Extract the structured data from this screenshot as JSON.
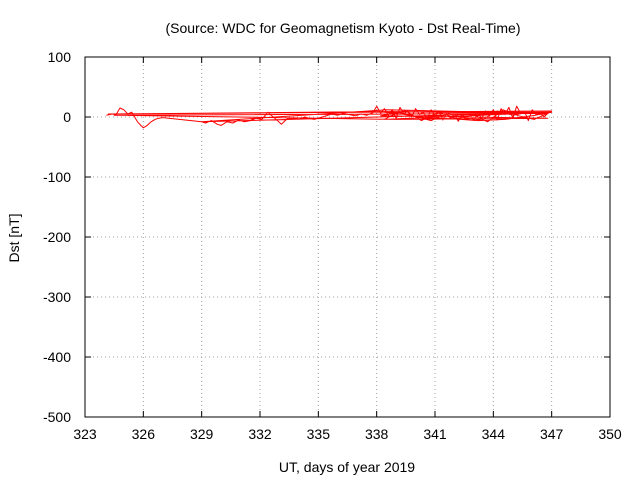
{
  "chart_data": {
    "type": "line",
    "title": "(Source: WDC for Geomagnetism Kyoto - Dst Real-Time)",
    "xlabel": "UT, days of year 2019",
    "ylabel": "Dst [nT]",
    "xlim": [
      323,
      350
    ],
    "ylim": [
      -500,
      100
    ],
    "x_ticks": [
      323,
      326,
      329,
      332,
      335,
      338,
      341,
      344,
      347,
      350
    ],
    "x_tick_labels": [
      "323",
      "326",
      "329",
      "332",
      "335",
      "338",
      "341",
      "344",
      "347",
      "350"
    ],
    "y_ticks": [
      100,
      0,
      -100,
      -200,
      -300,
      -400,
      -500
    ],
    "y_tick_labels": [
      "100",
      "0",
      "-100",
      "-200",
      "-300",
      "-400",
      "-500"
    ],
    "grid": true,
    "series_color": "#ff0000",
    "series": [
      {
        "x": [
          324.1,
          324.4,
          324.6,
          324.8,
          325.0,
          325.2,
          325.4,
          325.5,
          325.7,
          325.9,
          326.0,
          326.2,
          326.4,
          326.6,
          326.8,
          327.0,
          329.0,
          329.2,
          329.5,
          329.8,
          330.0,
          330.3,
          330.6,
          330.9,
          331.2,
          331.5,
          331.8,
          332.1,
          332.4,
          332.6,
          332.9,
          333.1,
          333.4,
          333.7,
          334.0,
          334.3,
          334.5,
          334.8,
          335.1,
          335.4,
          335.7,
          336.0,
          336.3,
          336.6,
          336.9,
          337.2,
          337.5,
          337.8,
          338.0,
          338.2,
          338.4,
          338.6,
          338.8,
          339.0,
          339.2,
          339.4,
          339.6,
          339.8,
          340.0,
          340.2,
          340.4,
          340.6,
          340.8,
          341.0,
          341.2,
          341.4,
          341.6,
          341.8,
          342.0,
          342.2,
          342.4,
          342.6,
          342.8,
          343.0,
          343.2,
          343.4,
          343.6,
          343.8,
          344.0,
          344.2,
          344.4,
          344.6,
          344.8,
          345.0,
          345.2,
          345.4,
          345.6,
          345.8,
          346.0,
          346.2,
          346.4,
          346.6,
          346.8,
          347.0,
          324.2,
          338.0,
          347.0,
          329.0,
          338.5,
          346.5,
          324.5,
          339.0,
          346.8,
          338.2,
          339.5,
          340.3,
          341.2,
          342.1,
          343.0,
          343.7,
          344.5,
          345.3,
          346.1,
          346.9,
          338.4,
          339.1,
          339.9,
          340.8,
          341.7,
          342.6,
          343.4,
          344.2,
          345.0,
          345.8,
          346.6,
          338.1,
          339.3,
          340.6,
          341.9,
          343.2,
          344.6,
          346.0,
          347.0
        ],
        "y": [
          3,
          5,
          4,
          15,
          12,
          5,
          8,
          3,
          -8,
          -15,
          -18,
          -14,
          -8,
          -4,
          -2,
          -1,
          -8,
          -10,
          -6,
          -12,
          -14,
          -8,
          -10,
          -5,
          -8,
          -6,
          -2,
          -4,
          8,
          2,
          -6,
          -12,
          -3,
          -2,
          -4,
          0,
          -2,
          -4,
          -1,
          2,
          5,
          3,
          6,
          4,
          2,
          5,
          3,
          7,
          18,
          6,
          14,
          3,
          12,
          -2,
          16,
          5,
          10,
          0,
          14,
          4,
          8,
          -3,
          12,
          2,
          9,
          -5,
          6,
          -2,
          4,
          -7,
          5,
          -4,
          3,
          -6,
          8,
          -3,
          10,
          2,
          12,
          -5,
          14,
          4,
          16,
          -2,
          18,
          6,
          10,
          -6,
          12,
          4,
          8,
          0,
          6,
          10,
          5,
          9,
          8,
          -8,
          12,
          6,
          3,
          -4,
          -2,
          2,
          10,
          -6,
          8,
          -3,
          4,
          -8,
          12,
          2,
          -4,
          8,
          -4,
          8,
          2,
          -6,
          6,
          -2,
          -5,
          10,
          3,
          8,
          6,
          9,
          5,
          -2,
          -3,
          -6,
          -4,
          2,
          8
        ]
      }
    ]
  }
}
